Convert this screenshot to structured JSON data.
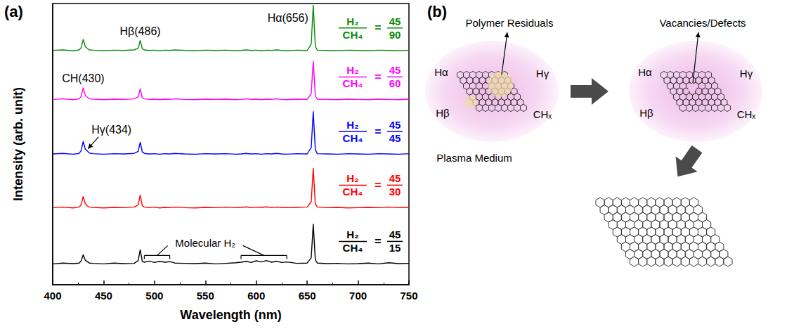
{
  "chart_data": {
    "type": "line",
    "panel_label": "(a)",
    "x_label": "Wavelength (nm)",
    "y_label": "Intensity (arb. unit)",
    "xlim": [
      400,
      750
    ],
    "xticks": [
      400,
      450,
      500,
      550,
      600,
      650,
      700,
      750
    ],
    "ylim": [
      0,
      10
    ],
    "tick_labels": "x",
    "grid": false,
    "marker": "none",
    "x": [
      400,
      410,
      420,
      426,
      428,
      430,
      432,
      434,
      436,
      440,
      450,
      460,
      470,
      480,
      484,
      486,
      488,
      490,
      495,
      500,
      505,
      510,
      515,
      520,
      530,
      540,
      550,
      560,
      570,
      580,
      585,
      590,
      595,
      600,
      605,
      610,
      615,
      620,
      625,
      630,
      640,
      650,
      654,
      656,
      658,
      660,
      670,
      680,
      690,
      700,
      710,
      720,
      730,
      740,
      750
    ],
    "ratio": {
      "numerator": "H₂",
      "denominator": "CH₄",
      "sign": "="
    },
    "series": [
      {
        "color": "#0b8a0b",
        "h2": 45,
        "ch4": 90,
        "values": [
          8.33,
          8.35,
          8.32,
          8.35,
          8.43,
          8.73,
          8.47,
          8.4,
          8.35,
          8.34,
          8.32,
          8.34,
          8.33,
          8.35,
          8.41,
          8.69,
          8.39,
          8.35,
          8.33,
          8.34,
          8.32,
          8.34,
          8.33,
          8.35,
          8.33,
          8.32,
          8.34,
          8.33,
          8.34,
          8.32,
          8.33,
          8.35,
          8.33,
          8.34,
          8.32,
          8.34,
          8.33,
          8.35,
          8.33,
          8.32,
          8.34,
          8.33,
          8.56,
          9.95,
          8.48,
          8.34,
          8.33,
          8.32,
          8.34,
          8.33,
          8.32,
          8.34,
          8.33,
          8.32,
          8.34
        ]
      },
      {
        "color": "#ff00ff",
        "h2": 45,
        "ch4": 60,
        "values": [
          6.59,
          6.61,
          6.58,
          6.61,
          6.7,
          7.01,
          6.74,
          6.67,
          6.61,
          6.6,
          6.58,
          6.6,
          6.59,
          6.61,
          6.68,
          6.97,
          6.65,
          6.61,
          6.59,
          6.6,
          6.58,
          6.6,
          6.59,
          6.61,
          6.59,
          6.58,
          6.6,
          6.59,
          6.6,
          6.58,
          6.59,
          6.61,
          6.59,
          6.6,
          6.58,
          6.6,
          6.59,
          6.61,
          6.59,
          6.58,
          6.6,
          6.59,
          6.8,
          7.96,
          6.72,
          6.6,
          6.59,
          6.58,
          6.6,
          6.59,
          6.58,
          6.6,
          6.59,
          6.58,
          6.6
        ]
      },
      {
        "color": "#0000ff",
        "h2": 45,
        "ch4": 45,
        "values": [
          4.65,
          4.67,
          4.64,
          4.67,
          4.77,
          5.1,
          4.82,
          4.76,
          4.68,
          4.66,
          4.64,
          4.66,
          4.65,
          4.67,
          4.74,
          5.07,
          4.72,
          4.67,
          4.65,
          4.66,
          4.64,
          4.66,
          4.65,
          4.67,
          4.65,
          4.64,
          4.66,
          4.65,
          4.66,
          4.64,
          4.65,
          4.67,
          4.65,
          4.66,
          4.64,
          4.66,
          4.65,
          4.67,
          4.65,
          4.64,
          4.66,
          4.65,
          4.88,
          6.17,
          4.8,
          4.66,
          4.65,
          4.64,
          4.66,
          4.65,
          4.64,
          4.66,
          4.65,
          4.64,
          4.66
        ]
      },
      {
        "color": "#ff0000",
        "h2": 45,
        "ch4": 30,
        "values": [
          2.74,
          2.76,
          2.73,
          2.76,
          2.85,
          3.14,
          2.88,
          2.8,
          2.76,
          2.75,
          2.73,
          2.75,
          2.74,
          2.76,
          2.84,
          3.19,
          2.81,
          2.76,
          2.74,
          2.76,
          2.73,
          2.75,
          2.74,
          2.76,
          2.74,
          2.73,
          2.75,
          2.74,
          2.76,
          2.74,
          2.75,
          2.77,
          2.74,
          2.76,
          2.75,
          2.77,
          2.74,
          2.76,
          2.75,
          2.74,
          2.75,
          2.76,
          2.95,
          4.15,
          2.88,
          2.76,
          2.74,
          2.75,
          2.73,
          2.74,
          2.75,
          2.74,
          2.76,
          2.74,
          2.75
        ]
      },
      {
        "color": "#000000",
        "h2": 45,
        "ch4": 15,
        "values": [
          0.74,
          0.77,
          0.75,
          0.77,
          0.85,
          1.07,
          0.87,
          0.82,
          0.77,
          0.76,
          0.74,
          0.77,
          0.75,
          0.76,
          0.86,
          1.25,
          0.83,
          0.8,
          0.84,
          0.79,
          0.83,
          0.8,
          0.82,
          0.77,
          0.76,
          0.75,
          0.77,
          0.74,
          0.76,
          0.78,
          0.8,
          0.83,
          0.79,
          0.85,
          0.81,
          0.86,
          0.8,
          0.83,
          0.79,
          0.81,
          0.76,
          0.77,
          0.96,
          2.16,
          0.89,
          0.77,
          0.75,
          0.76,
          0.74,
          0.75,
          0.77,
          0.74,
          0.78,
          0.75,
          0.76
        ]
      }
    ],
    "annotations": [
      {
        "text": "Hα(656)",
        "x": 656,
        "series": 0
      },
      {
        "text": "Hβ(486)",
        "x": 486,
        "series": 0
      },
      {
        "text": "CH(430)",
        "x": 430,
        "series": 1
      },
      {
        "text": "Hγ(434)",
        "x": 434,
        "series": 2
      },
      {
        "text": "Molecular H₂",
        "series": 4,
        "ranges": [
          [
            490,
            515
          ],
          [
            585,
            630
          ]
        ]
      }
    ]
  },
  "diagram": {
    "panel_label": "(b)",
    "stages": [
      {
        "species": [
          "Hα",
          "Hγ",
          "Hβ",
          "CHₓ"
        ],
        "callout": "Polymer Residuals"
      },
      {
        "species": [
          "Hα",
          "Hγ",
          "Hβ",
          "CHₓ"
        ],
        "callout": "Vacancies/Defects"
      }
    ],
    "caption": "Plasma Medium"
  }
}
